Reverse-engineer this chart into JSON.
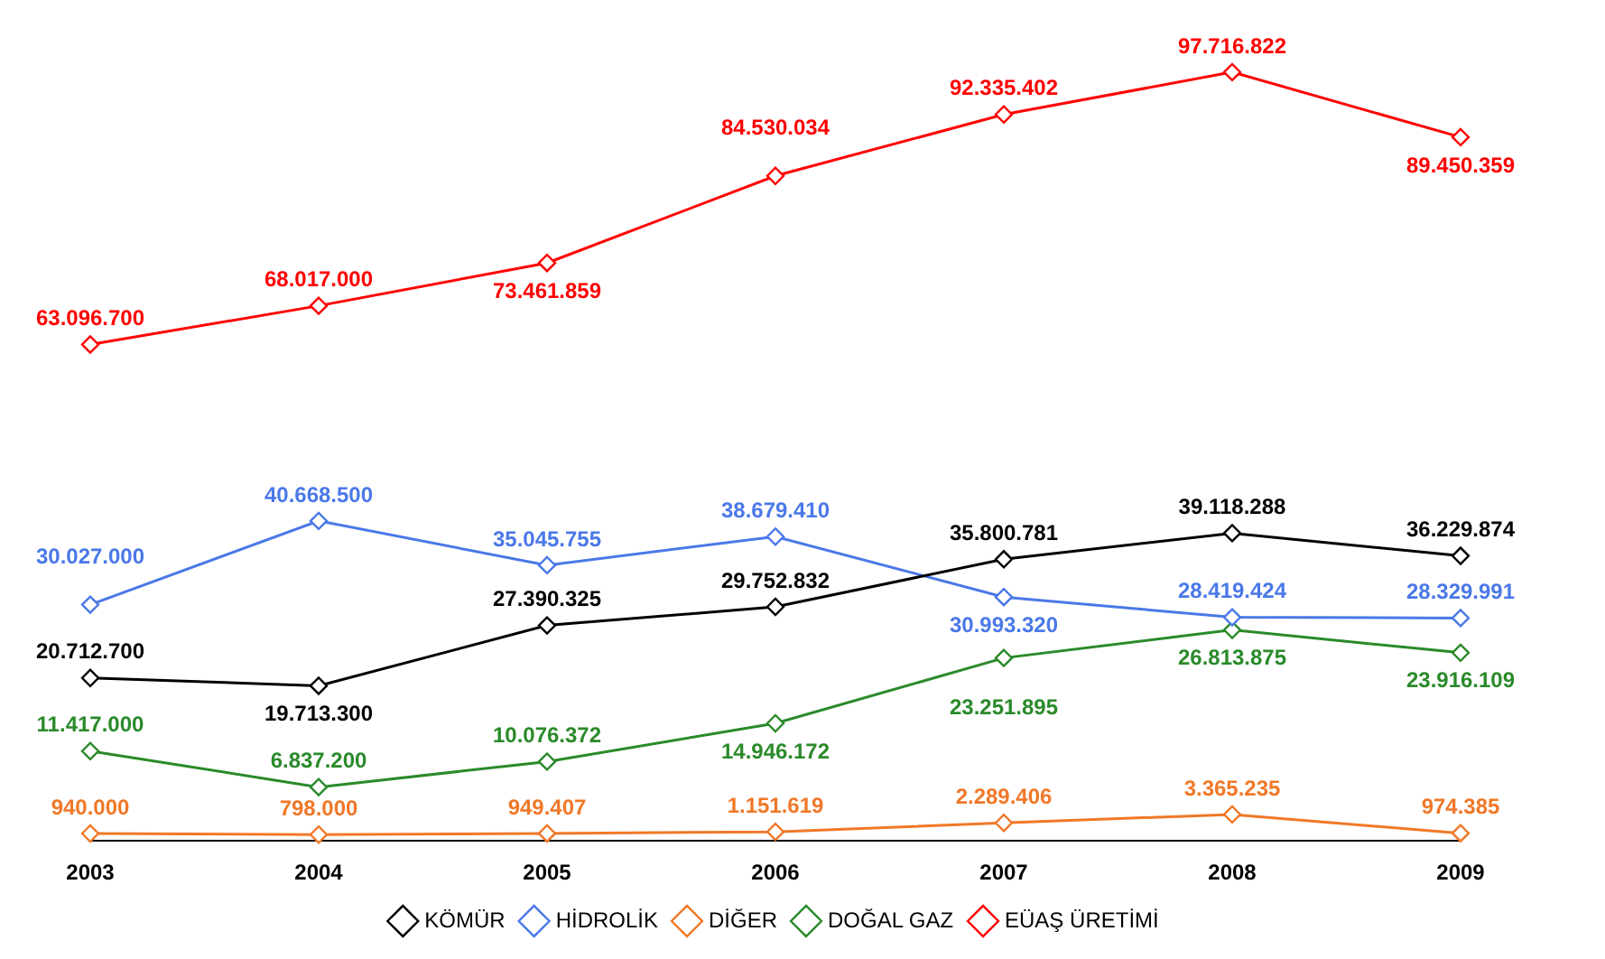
{
  "chart_data": {
    "type": "line",
    "categories": [
      "2003",
      "2004",
      "2005",
      "2006",
      "2007",
      "2008",
      "2009"
    ],
    "marker": "diamond",
    "legend": "bottom",
    "data_labels": true,
    "grid": false,
    "series": [
      {
        "name": "KÖMÜR",
        "color": "#000000",
        "values": [
          20712700,
          19713300,
          27390325,
          29752832,
          35800781,
          39118288,
          36229874
        ],
        "value_labels": [
          "20.712.700",
          "19.713.300",
          "27.390.325",
          "29.752.832",
          "35.800.781",
          "39.118.288",
          "36.229.874"
        ]
      },
      {
        "name": "HİDROLİK",
        "color": "#4a78e8",
        "values": [
          30027000,
          40668500,
          35045755,
          38679410,
          30993320,
          28419424,
          28329991
        ],
        "value_labels": [
          "30.027.000",
          "40.668.500",
          "35.045.755",
          "38.679.410",
          "30.993.320",
          "28.419.424",
          "28.329.991"
        ]
      },
      {
        "name": "DİĞER",
        "color": "#f07828",
        "values": [
          940000,
          798000,
          949407,
          1151619,
          2289406,
          3365235,
          974385
        ],
        "value_labels": [
          "940.000",
          "798.000",
          "949.407",
          "1.151.619",
          "2.289.406",
          "3.365.235",
          "974.385"
        ]
      },
      {
        "name": "DOĞAL GAZ",
        "color": "#2a8a2a",
        "values": [
          11417000,
          6837200,
          10076372,
          14946172,
          23251895,
          26813875,
          23916109
        ],
        "value_labels": [
          "11.417.000",
          "6.837.200",
          "10.076.372",
          "14.946.172",
          "23.251.895",
          "26.813.875",
          "23.916.109"
        ]
      },
      {
        "name": "EÜAŞ ÜRETİMİ",
        "color": "#ff0000",
        "values": [
          63096700,
          68017000,
          73461859,
          84530034,
          92335402,
          97716822,
          89450359
        ],
        "value_labels": [
          "63.096.700",
          "68.017.000",
          "73.461.859",
          "84.530.034",
          "92.335.402",
          "97.716.822",
          "89.450.359"
        ]
      }
    ]
  }
}
